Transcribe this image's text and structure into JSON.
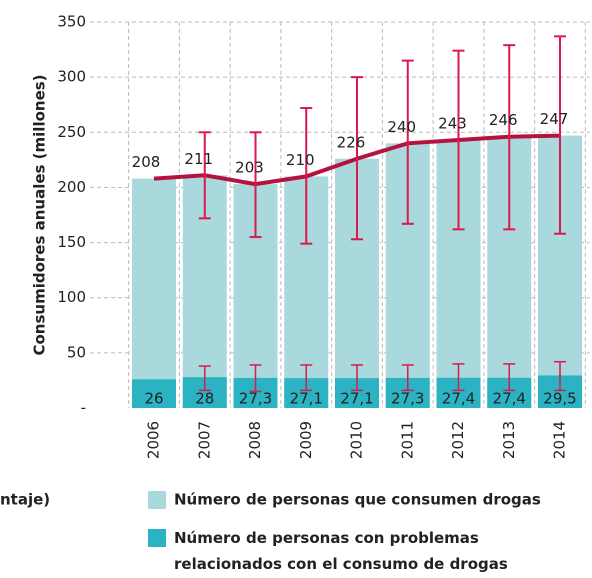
{
  "chart_data": {
    "type": "bar",
    "y_label": "Consumidores anuales (millones)",
    "categories": [
      "2006",
      "2007",
      "2008",
      "2009",
      "2010",
      "2011",
      "2012",
      "2013",
      "2014"
    ],
    "series": [
      {
        "name": "Número de personas que consumen drogas",
        "color": "#a9d9dc",
        "line_color": "#b5123f",
        "error_color": "#d81b4c",
        "values": [
          208,
          211,
          203,
          210,
          226,
          240,
          243,
          246,
          247
        ],
        "error_low": [
          null,
          172,
          155,
          149,
          153,
          167,
          162,
          162,
          158
        ],
        "error_high": [
          null,
          250,
          250,
          272,
          300,
          315,
          324,
          329,
          337
        ]
      },
      {
        "name": "Número de personas con problemas relacionados con el consumo de drogas",
        "color": "#2cb3c3",
        "error_color": "#d81b4c",
        "values": [
          26,
          28,
          27.3,
          27.1,
          27.1,
          27.3,
          27.4,
          27.4,
          29.5
        ],
        "value_labels": [
          "26",
          "28",
          "27,3",
          "27,1",
          "27,1",
          "27,3",
          "27,4",
          "27,4",
          "29,5"
        ],
        "error_low": [
          null,
          16,
          15,
          16,
          16,
          16,
          16,
          16,
          16
        ],
        "error_high": [
          null,
          38,
          39,
          39,
          39,
          39,
          40,
          40,
          42
        ]
      }
    ],
    "ylim": [
      0,
      350
    ],
    "yticks": [
      {
        "value": 0,
        "label": "-"
      },
      50,
      100,
      150,
      200,
      250,
      300,
      350
    ],
    "grid": true,
    "legend_fragment": "ntaje)"
  }
}
